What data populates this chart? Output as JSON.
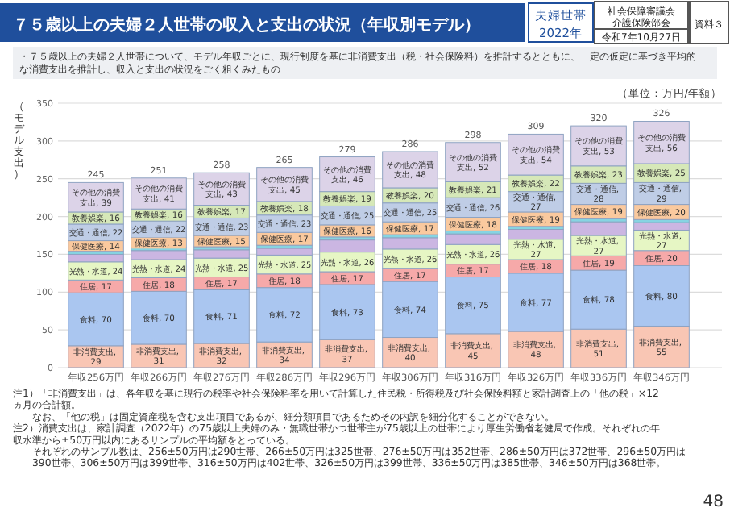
{
  "chart_data": {
    "type": "bar",
    "stacked": true,
    "title": "７５歳以上の夫婦２人世帯の収入と支出の状況（年収別モデル）",
    "subtitle": "・７５歳以上の夫婦２人世帯について、モデル年収ごとに、現行制度を基に非消費支出（税・社会保険料）を推計するとともに、一定の仮定に基づき平均的な消費支出を推計し、収入と支出の状況をごく粗くみたもの",
    "ylabel": "（モデル支出）",
    "categories": [
      "年収256万円",
      "年収266万円",
      "年収276万円",
      "年収286万円",
      "年収296万円",
      "年収306万円",
      "年収316万円",
      "年収326万円",
      "年収336万円",
      "年収346万円"
    ],
    "series": [
      {
        "color": "#f9c6b4",
        "values": [
          29,
          31,
          32,
          34,
          37,
          40,
          45,
          48,
          51,
          55
        ],
        "value_labels": [
          "非消費支出, 29",
          "非消費支出, 31",
          "非消費支出, 32",
          "非消費支出, 34",
          "非消費支出, 37",
          "非消費支出, 40",
          "非消費支出, 45",
          "非消費支出, 48",
          "非消費支出, 51",
          "非消費支出, 55"
        ]
      },
      {
        "color": "#aac6f0",
        "values": [
          70,
          70,
          71,
          72,
          73,
          74,
          75,
          77,
          78,
          80
        ],
        "value_labels": [
          "食料, 70",
          "食料, 70",
          "食料, 71",
          "食料, 72",
          "食料, 73",
          "食料, 74",
          "食料, 75",
          "食料, 77",
          "食料, 78",
          "食料, 80"
        ]
      },
      {
        "color": "#f6a9a9",
        "values": [
          17,
          18,
          17,
          18,
          17,
          17,
          17,
          18,
          19,
          20
        ],
        "value_labels": [
          "住居, 17",
          "住居, 18",
          "住居, 17",
          "住居, 18",
          "住居, 17",
          "住居, 17",
          "住居, 17",
          "住居, 18",
          "住居, 19",
          "住居, 20"
        ]
      },
      {
        "color": "#e6f6c4",
        "values": [
          24,
          24,
          25,
          25,
          26,
          26,
          26,
          27,
          27,
          27
        ],
        "value_labels": [
          "光熱・水道, 24",
          "光熱・水道, 24",
          "光熱・水道, 25",
          "光熱・水道, 25",
          "光熱・水道, 26",
          "光熱・水道, 26",
          "光熱・水道, 26",
          "光熱・水道, 27",
          "光熱・水道, 27",
          "光熱・水道, 27"
        ]
      },
      {
        "color": "#cbb6e2",
        "values": [
          10,
          12,
          11,
          9,
          16,
          15,
          14,
          13,
          18,
          10
        ]
      },
      {
        "color": "#86d4e2",
        "values": [
          4,
          4,
          4,
          4,
          4,
          4,
          4,
          4,
          4,
          4
        ]
      },
      {
        "color": "#fac99e",
        "values": [
          14,
          13,
          15,
          17,
          16,
          17,
          18,
          19,
          19,
          20
        ],
        "value_labels": [
          "保健医療, 14",
          "保健医療, 13",
          "保健医療, 15",
          "保健医療, 17",
          "保健医療, 16",
          "保健医療, 17",
          "保健医療, 18",
          "保健医療, 19",
          "保健医療, 19",
          "保健医療, 20"
        ]
      },
      {
        "color": "#bfcde6",
        "values": [
          22,
          22,
          23,
          23,
          25,
          25,
          26,
          27,
          28,
          29
        ],
        "value_labels": [
          "交通・通信, 22",
          "交通・通信, 22",
          "交通・通信, 23",
          "交通・通信, 23",
          "交通・通信, 25",
          "交通・通信, 25",
          "交通・通信, 26",
          "交通・通信, 27",
          "交通・通信, 28",
          "交通・通信, 29"
        ]
      },
      {
        "color": "#d6e8b8",
        "values": [
          16,
          16,
          17,
          18,
          19,
          20,
          21,
          22,
          23,
          25
        ],
        "value_labels": [
          "教養娯楽, 16",
          "教養娯楽, 16",
          "教養娯楽, 17",
          "教養娯楽, 18",
          "教養娯楽, 19",
          "教養娯楽, 20",
          "教養娯楽, 21",
          "教養娯楽, 22",
          "教養娯楽, 23",
          "教養娯楽, 25"
        ]
      },
      {
        "color": "#dcd3e8",
        "values": [
          39,
          41,
          43,
          45,
          46,
          48,
          52,
          54,
          53,
          56
        ],
        "value_labels": [
          "その他の消費支出, 39",
          "その他の消費支出, 41",
          "その他の消費支出, 43",
          "その他の消費支出, 45",
          "その他の消費支出, 46",
          "その他の消費支出, 48",
          "その他の消費支出, 52",
          "その他の消費支出, 54",
          "その他の消費支出, 53",
          "その他の消費支出, 56"
        ]
      }
    ],
    "totals": [
      "245",
      "251",
      "258",
      "265",
      "279",
      "286",
      "298",
      "309",
      "320",
      "326"
    ],
    "ylim": [
      0,
      350
    ],
    "yticks": [
      0,
      50,
      100,
      150,
      200,
      250,
      300,
      350
    ],
    "grid": "y",
    "annotations": [
      "夫婦世帯",
      "2022年",
      "社会保障審議会",
      "介護保険部会",
      "令和7年10月27日",
      "資料３",
      "（単位：万円/年額）",
      "注1）「非消費支出」は、各年収を基に現行の税率や社会保険料率を用いて計算した住民税・所得税及び社会保険料額と家計調査上の「他の税」×12ヵ月の合計額。",
      "なお、「他の税」は固定資産税を含む支出項目であるが、細分類項目であるためその内訳を細分化することができない。",
      "注2）消費支出は、家計調査（2022年）の75歳以上夫婦のみ・無職世帯かつ世帯主が75歳以上の世帯により厚生労働省老健局で作成。それぞれの年収水準から±50万円以内にあるサンプルの平均額をとっている。",
      "それぞれのサンプル数は、256±50万円は290世帯、266±50万円は325世帯、276±50万円は352世帯、286±50万円は372世帯、296±50万円は390世帯、306±50万円は399世帯、316±50万円は402世帯、326±50万円は399世帯、336±50万円は385世帯、346±50万円は368世帯。",
      "48"
    ]
  }
}
